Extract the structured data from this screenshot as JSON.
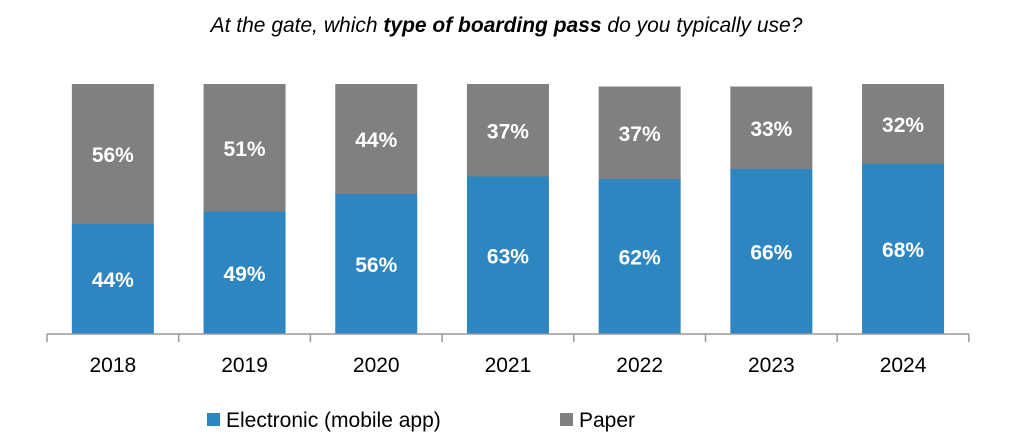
{
  "chart_data": {
    "type": "bar",
    "stacked": true,
    "title_parts": [
      "At the gate, which ",
      "type of boarding pass",
      " do you typically use?"
    ],
    "categories": [
      "2018",
      "2019",
      "2020",
      "2021",
      "2022",
      "2023",
      "2024"
    ],
    "series": [
      {
        "name": "Electronic (mobile app)",
        "color": "#2E86C1",
        "values": [
          44,
          49,
          56,
          63,
          62,
          66,
          68
        ]
      },
      {
        "name": "Paper",
        "color": "#808080",
        "values": [
          56,
          51,
          44,
          37,
          37,
          33,
          32
        ]
      }
    ],
    "value_suffix": "%",
    "ylim": [
      0,
      100
    ],
    "grid": false,
    "legend_position": "bottom"
  }
}
